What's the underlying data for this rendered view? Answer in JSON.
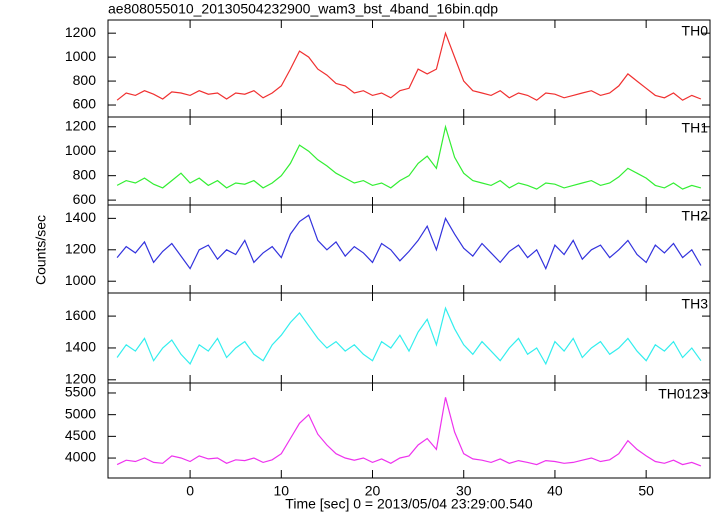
{
  "chart_data": [
    {
      "type": "line",
      "title": "ae808055010_20130504232900_wam3_bst_4band_16bin.qdp",
      "xlim": [
        -9,
        57
      ],
      "ylim": [
        500,
        1310
      ],
      "yticks": [
        600,
        800,
        1000,
        1200
      ],
      "series": [
        {
          "name": "TH0",
          "color": "#f03030",
          "x": [
            -8,
            -7,
            -6,
            -5,
            -4,
            -3,
            -2,
            -1,
            0,
            1,
            2,
            3,
            4,
            5,
            6,
            7,
            8,
            9,
            10,
            11,
            12,
            13,
            14,
            15,
            16,
            17,
            18,
            19,
            20,
            21,
            22,
            23,
            24,
            25,
            26,
            27,
            28,
            29,
            30,
            31,
            32,
            33,
            34,
            35,
            36,
            37,
            38,
            39,
            40,
            41,
            42,
            43,
            44,
            45,
            46,
            47,
            48,
            49,
            50,
            51,
            52,
            53,
            54,
            55,
            56
          ],
          "values": [
            640,
            700,
            680,
            720,
            690,
            650,
            710,
            700,
            680,
            720,
            690,
            700,
            650,
            700,
            690,
            720,
            660,
            700,
            760,
            900,
            1050,
            1000,
            900,
            850,
            780,
            760,
            700,
            720,
            680,
            700,
            660,
            720,
            740,
            900,
            860,
            900,
            1200,
            1000,
            800,
            720,
            700,
            680,
            720,
            660,
            700,
            680,
            640,
            700,
            690,
            660,
            680,
            700,
            720,
            680,
            700,
            760,
            860,
            800,
            740,
            680,
            660,
            700,
            640,
            680,
            650
          ]
        }
      ]
    },
    {
      "type": "line",
      "xlim": [
        -9,
        57
      ],
      "ylim": [
        560,
        1280
      ],
      "yticks": [
        600,
        800,
        1000,
        1200
      ],
      "series": [
        {
          "name": "TH1",
          "color": "#33ee33",
          "x": [
            -8,
            -7,
            -6,
            -5,
            -4,
            -3,
            -2,
            -1,
            0,
            1,
            2,
            3,
            4,
            5,
            6,
            7,
            8,
            9,
            10,
            11,
            12,
            13,
            14,
            15,
            16,
            17,
            18,
            19,
            20,
            21,
            22,
            23,
            24,
            25,
            26,
            27,
            28,
            29,
            30,
            31,
            32,
            33,
            34,
            35,
            36,
            37,
            38,
            39,
            40,
            41,
            42,
            43,
            44,
            45,
            46,
            47,
            48,
            49,
            50,
            51,
            52,
            53,
            54,
            55,
            56
          ],
          "values": [
            720,
            760,
            740,
            780,
            730,
            700,
            760,
            820,
            740,
            780,
            720,
            760,
            700,
            740,
            730,
            760,
            700,
            740,
            800,
            900,
            1050,
            1000,
            930,
            880,
            820,
            780,
            740,
            760,
            720,
            740,
            700,
            760,
            800,
            900,
            960,
            860,
            1200,
            950,
            820,
            760,
            740,
            720,
            760,
            700,
            740,
            720,
            690,
            740,
            730,
            700,
            720,
            740,
            760,
            720,
            740,
            790,
            860,
            820,
            780,
            720,
            700,
            740,
            690,
            720,
            700
          ]
        }
      ]
    },
    {
      "type": "line",
      "xlim": [
        -9,
        57
      ],
      "ylim": [
        925,
        1485
      ],
      "yticks": [
        1000,
        1200,
        1400
      ],
      "series": [
        {
          "name": "TH2",
          "color": "#3333dd",
          "x": [
            -8,
            -7,
            -6,
            -5,
            -4,
            -3,
            -2,
            -1,
            0,
            1,
            2,
            3,
            4,
            5,
            6,
            7,
            8,
            9,
            10,
            11,
            12,
            13,
            14,
            15,
            16,
            17,
            18,
            19,
            20,
            21,
            22,
            23,
            24,
            25,
            26,
            27,
            28,
            29,
            30,
            31,
            32,
            33,
            34,
            35,
            36,
            37,
            38,
            39,
            40,
            41,
            42,
            43,
            44,
            45,
            46,
            47,
            48,
            49,
            50,
            51,
            52,
            53,
            54,
            55,
            56
          ],
          "values": [
            1150,
            1220,
            1180,
            1250,
            1120,
            1190,
            1240,
            1160,
            1080,
            1200,
            1230,
            1140,
            1200,
            1170,
            1260,
            1120,
            1180,
            1220,
            1150,
            1300,
            1380,
            1420,
            1260,
            1200,
            1250,
            1160,
            1220,
            1180,
            1120,
            1240,
            1200,
            1130,
            1190,
            1260,
            1350,
            1200,
            1400,
            1300,
            1210,
            1160,
            1240,
            1180,
            1120,
            1190,
            1230,
            1150,
            1200,
            1080,
            1230,
            1170,
            1260,
            1140,
            1200,
            1230,
            1150,
            1200,
            1260,
            1170,
            1120,
            1230,
            1180,
            1240,
            1150,
            1200,
            1100
          ]
        }
      ]
    },
    {
      "type": "line",
      "xlim": [
        -9,
        57
      ],
      "ylim": [
        1180,
        1745
      ],
      "yticks": [
        1200,
        1400,
        1600
      ],
      "series": [
        {
          "name": "TH3",
          "color": "#33eeee",
          "x": [
            -8,
            -7,
            -6,
            -5,
            -4,
            -3,
            -2,
            -1,
            0,
            1,
            2,
            3,
            4,
            5,
            6,
            7,
            8,
            9,
            10,
            11,
            12,
            13,
            14,
            15,
            16,
            17,
            18,
            19,
            20,
            21,
            22,
            23,
            24,
            25,
            26,
            27,
            28,
            29,
            30,
            31,
            32,
            33,
            34,
            35,
            36,
            37,
            38,
            39,
            40,
            41,
            42,
            43,
            44,
            45,
            46,
            47,
            48,
            49,
            50,
            51,
            52,
            53,
            54,
            55,
            56
          ],
          "values": [
            1340,
            1420,
            1380,
            1460,
            1320,
            1400,
            1450,
            1360,
            1300,
            1420,
            1380,
            1460,
            1340,
            1400,
            1440,
            1360,
            1320,
            1420,
            1480,
            1560,
            1620,
            1540,
            1460,
            1400,
            1440,
            1380,
            1420,
            1360,
            1320,
            1440,
            1400,
            1480,
            1380,
            1500,
            1580,
            1420,
            1650,
            1520,
            1420,
            1360,
            1440,
            1380,
            1320,
            1400,
            1460,
            1360,
            1400,
            1300,
            1440,
            1380,
            1460,
            1340,
            1400,
            1440,
            1360,
            1400,
            1460,
            1380,
            1320,
            1420,
            1380,
            1440,
            1340,
            1400,
            1320
          ]
        }
      ]
    },
    {
      "type": "line",
      "xlim": [
        -9,
        57
      ],
      "ylim": [
        3540,
        5730
      ],
      "yticks": [
        4000,
        4500,
        5000,
        5500
      ],
      "xticks": [
        0,
        10,
        20,
        30,
        40,
        50
      ],
      "x_label": "Time [sec] 0 = 2013/05/04 23:29:00.540",
      "y_label": "Counts/sec",
      "series": [
        {
          "name": "TH0123",
          "color": "#ee33ee",
          "x": [
            -8,
            -7,
            -6,
            -5,
            -4,
            -3,
            -2,
            -1,
            0,
            1,
            2,
            3,
            4,
            5,
            6,
            7,
            8,
            9,
            10,
            11,
            12,
            13,
            14,
            15,
            16,
            17,
            18,
            19,
            20,
            21,
            22,
            23,
            24,
            25,
            26,
            27,
            28,
            29,
            30,
            31,
            32,
            33,
            34,
            35,
            36,
            37,
            38,
            39,
            40,
            41,
            42,
            43,
            44,
            45,
            46,
            47,
            48,
            49,
            50,
            51,
            52,
            53,
            54,
            55,
            56
          ],
          "values": [
            3850,
            3950,
            3920,
            4000,
            3900,
            3880,
            4050,
            4000,
            3920,
            4050,
            3980,
            4000,
            3880,
            3960,
            3940,
            4000,
            3900,
            3960,
            4100,
            4450,
            4800,
            5000,
            4550,
            4300,
            4100,
            4000,
            3950,
            4000,
            3900,
            3980,
            3880,
            4000,
            4050,
            4300,
            4450,
            4200,
            5400,
            4600,
            4100,
            3980,
            3950,
            3900,
            3980,
            3880,
            3940,
            3900,
            3850,
            3940,
            3920,
            3880,
            3900,
            3950,
            4000,
            3920,
            3960,
            4100,
            4400,
            4200,
            4050,
            3920,
            3880,
            3950,
            3850,
            3900,
            3820
          ]
        }
      ]
    }
  ]
}
